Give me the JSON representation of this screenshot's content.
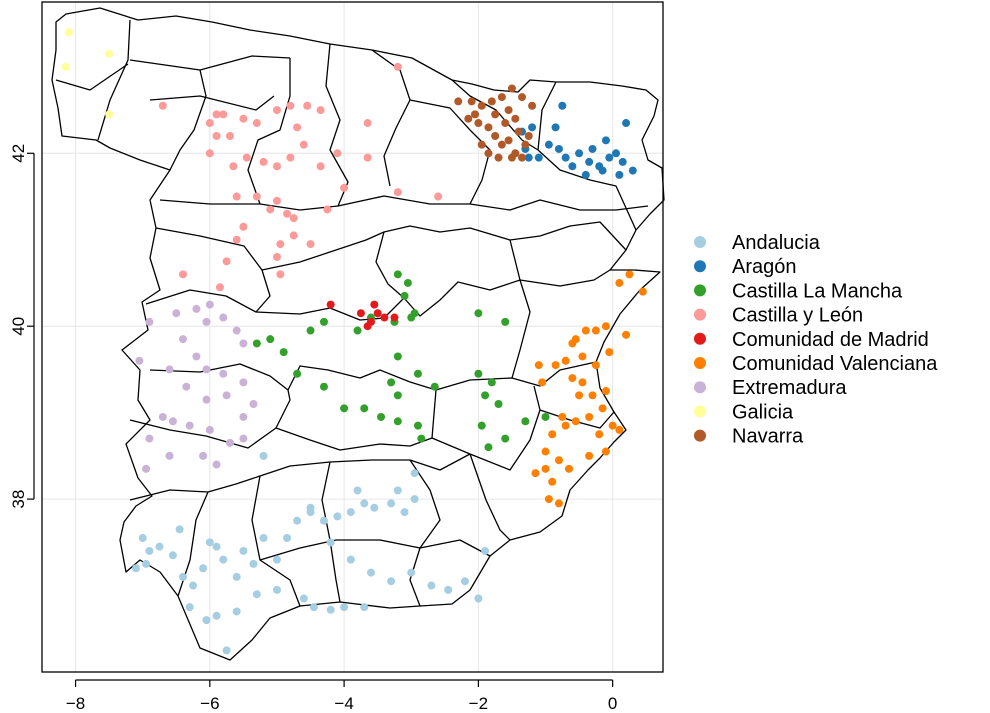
{
  "chart_data": {
    "type": "scatter",
    "title": "",
    "xlabel": "",
    "ylabel": "",
    "xlim": [
      -8.5,
      0.75
    ],
    "ylim": [
      36.0,
      43.75
    ],
    "xticks": [
      -8,
      -6,
      -4,
      -2,
      0
    ],
    "yticks": [
      38,
      40,
      42
    ],
    "xtick_labels": [
      "−8",
      "−6",
      "−4",
      "−2",
      "0"
    ],
    "ytick_labels": [
      "38",
      "40",
      "42"
    ],
    "grid": true,
    "legend_position": "right",
    "basemap": "provinces of Spain (outline)",
    "series": [
      {
        "name": "Andalucia",
        "color": "#a6cee3",
        "points": [
          [
            -7.0,
            37.55
          ],
          [
            -6.9,
            37.4
          ],
          [
            -6.75,
            37.45
          ],
          [
            -7.1,
            37.2
          ],
          [
            -6.55,
            37.35
          ],
          [
            -6.4,
            37.1
          ],
          [
            -6.25,
            37.0
          ],
          [
            -6.1,
            37.2
          ],
          [
            -6.0,
            37.5
          ],
          [
            -5.9,
            37.45
          ],
          [
            -5.8,
            37.3
          ],
          [
            -5.6,
            37.1
          ],
          [
            -5.5,
            37.4
          ],
          [
            -5.35,
            37.25
          ],
          [
            -5.2,
            37.55
          ],
          [
            -5.0,
            37.3
          ],
          [
            -4.85,
            37.55
          ],
          [
            -4.7,
            37.75
          ],
          [
            -4.5,
            37.85
          ],
          [
            -4.3,
            37.75
          ],
          [
            -4.1,
            37.8
          ],
          [
            -3.9,
            37.85
          ],
          [
            -3.7,
            37.95
          ],
          [
            -3.55,
            37.9
          ],
          [
            -3.3,
            37.95
          ],
          [
            -3.1,
            37.85
          ],
          [
            -2.95,
            38.0
          ],
          [
            -3.2,
            38.1
          ],
          [
            -3.8,
            38.1
          ],
          [
            -4.5,
            37.9
          ],
          [
            -4.2,
            37.5
          ],
          [
            -3.9,
            37.3
          ],
          [
            -3.6,
            37.15
          ],
          [
            -3.3,
            37.05
          ],
          [
            -3.0,
            37.15
          ],
          [
            -2.7,
            37.0
          ],
          [
            -2.45,
            36.95
          ],
          [
            -2.2,
            37.05
          ],
          [
            -2.0,
            36.85
          ],
          [
            -1.9,
            37.4
          ],
          [
            -4.6,
            36.85
          ],
          [
            -4.45,
            36.75
          ],
          [
            -4.2,
            36.72
          ],
          [
            -4.0,
            36.75
          ],
          [
            -3.7,
            36.75
          ],
          [
            -5.3,
            36.9
          ],
          [
            -5.6,
            36.7
          ],
          [
            -5.9,
            36.65
          ],
          [
            -6.05,
            36.6
          ],
          [
            -6.3,
            36.75
          ],
          [
            -5.75,
            36.25
          ],
          [
            -5.2,
            38.5
          ],
          [
            -2.95,
            38.3
          ],
          [
            -5.0,
            36.95
          ],
          [
            -6.45,
            37.65
          ],
          [
            -6.95,
            37.25
          ]
        ]
      },
      {
        "name": "Aragón",
        "color": "#1f78b4",
        "points": [
          [
            -1.3,
            42.05
          ],
          [
            -1.25,
            41.95
          ],
          [
            -1.1,
            41.95
          ],
          [
            -0.95,
            42.1
          ],
          [
            -0.8,
            42.05
          ],
          [
            -0.7,
            41.95
          ],
          [
            -0.5,
            42.0
          ],
          [
            -0.35,
            41.9
          ],
          [
            -0.2,
            41.85
          ],
          [
            -0.05,
            41.95
          ],
          [
            0.05,
            42.0
          ],
          [
            0.15,
            41.9
          ],
          [
            0.3,
            41.8
          ],
          [
            0.1,
            41.75
          ],
          [
            -0.15,
            41.8
          ],
          [
            -0.4,
            41.75
          ],
          [
            -0.6,
            41.85
          ],
          [
            -0.85,
            42.3
          ],
          [
            -0.75,
            42.55
          ],
          [
            0.2,
            42.35
          ],
          [
            -0.1,
            42.15
          ],
          [
            -0.3,
            42.05
          ],
          [
            -1.35,
            42.25
          ],
          [
            -1.2,
            42.3
          ]
        ]
      },
      {
        "name": "Castilla La Mancha",
        "color": "#33a02c",
        "points": [
          [
            -3.2,
            40.6
          ],
          [
            -3.05,
            40.5
          ],
          [
            -2.95,
            40.15
          ],
          [
            -3.0,
            40.1
          ],
          [
            -3.25,
            40.05
          ],
          [
            -3.2,
            39.65
          ],
          [
            -3.3,
            39.35
          ],
          [
            -2.9,
            39.45
          ],
          [
            -2.65,
            39.3
          ],
          [
            -2.0,
            40.15
          ],
          [
            -1.6,
            40.05
          ],
          [
            -2.0,
            39.45
          ],
          [
            -1.8,
            39.35
          ],
          [
            -1.9,
            39.2
          ],
          [
            -1.7,
            39.1
          ],
          [
            -1.95,
            38.85
          ],
          [
            -1.85,
            38.6
          ],
          [
            -1.6,
            38.7
          ],
          [
            -1.3,
            38.9
          ],
          [
            -1.0,
            38.95
          ],
          [
            -3.7,
            39.05
          ],
          [
            -3.45,
            38.95
          ],
          [
            -3.2,
            38.9
          ],
          [
            -2.9,
            38.85
          ],
          [
            -4.0,
            39.05
          ],
          [
            -4.3,
            39.3
          ],
          [
            -4.7,
            39.45
          ],
          [
            -4.9,
            39.7
          ],
          [
            -5.1,
            39.85
          ],
          [
            -5.3,
            39.8
          ],
          [
            -4.5,
            39.95
          ],
          [
            -4.3,
            40.05
          ],
          [
            -3.8,
            39.95
          ],
          [
            -2.85,
            38.7
          ],
          [
            -3.2,
            39.2
          ],
          [
            -3.1,
            40.35
          ],
          [
            -3.6,
            40.1
          ]
        ]
      },
      {
        "name": "Castilla y León",
        "color": "#fb9a99",
        "points": [
          [
            -6.7,
            42.55
          ],
          [
            -5.9,
            42.45
          ],
          [
            -5.8,
            42.45
          ],
          [
            -5.7,
            42.2
          ],
          [
            -5.9,
            42.2
          ],
          [
            -6.0,
            42.35
          ],
          [
            -5.5,
            42.4
          ],
          [
            -5.3,
            42.35
          ],
          [
            -5.0,
            42.5
          ],
          [
            -4.8,
            42.55
          ],
          [
            -4.55,
            42.55
          ],
          [
            -4.35,
            42.5
          ],
          [
            -4.7,
            42.3
          ],
          [
            -4.6,
            42.1
          ],
          [
            -4.8,
            41.95
          ],
          [
            -5.0,
            41.85
          ],
          [
            -5.2,
            41.9
          ],
          [
            -5.45,
            41.95
          ],
          [
            -5.65,
            41.85
          ],
          [
            -5.6,
            41.5
          ],
          [
            -5.3,
            41.5
          ],
          [
            -5.0,
            41.45
          ],
          [
            -4.85,
            41.3
          ],
          [
            -4.75,
            41.25
          ],
          [
            -5.1,
            41.35
          ],
          [
            -5.5,
            41.15
          ],
          [
            -5.6,
            41.0
          ],
          [
            -5.75,
            40.75
          ],
          [
            -5.85,
            40.45
          ],
          [
            -4.75,
            41.05
          ],
          [
            -4.95,
            40.95
          ],
          [
            -4.5,
            40.95
          ],
          [
            -4.25,
            41.35
          ],
          [
            -4.35,
            41.85
          ],
          [
            -4.0,
            41.6
          ],
          [
            -4.1,
            42.0
          ],
          [
            -3.65,
            41.95
          ],
          [
            -3.65,
            42.35
          ],
          [
            -3.2,
            41.55
          ],
          [
            -2.6,
            41.5
          ],
          [
            -6.4,
            40.6
          ],
          [
            -4.95,
            40.6
          ],
          [
            -5.0,
            40.8
          ],
          [
            -6.0,
            42.0
          ],
          [
            -3.2,
            43.0
          ]
        ]
      },
      {
        "name": "Comunidad de Madrid",
        "color": "#e31a1c",
        "points": [
          [
            -4.2,
            40.25
          ],
          [
            -3.55,
            40.25
          ],
          [
            -3.5,
            40.15
          ],
          [
            -3.4,
            40.1
          ],
          [
            -3.6,
            40.05
          ],
          [
            -3.25,
            40.1
          ],
          [
            -3.75,
            40.15
          ],
          [
            -3.65,
            40.0
          ]
        ]
      },
      {
        "name": "Comunidad Valenciana",
        "color": "#ff7f00",
        "points": [
          [
            0.45,
            40.4
          ],
          [
            0.25,
            40.6
          ],
          [
            0.1,
            40.5
          ],
          [
            -0.1,
            40.0
          ],
          [
            -0.25,
            39.95
          ],
          [
            -0.4,
            39.95
          ],
          [
            -0.55,
            39.85
          ],
          [
            -0.7,
            39.6
          ],
          [
            -0.85,
            39.55
          ],
          [
            -0.6,
            39.4
          ],
          [
            -0.45,
            39.35
          ],
          [
            -0.5,
            39.2
          ],
          [
            -0.3,
            39.2
          ],
          [
            -0.15,
            39.05
          ],
          [
            -0.1,
            39.25
          ],
          [
            -0.35,
            38.95
          ],
          [
            -0.55,
            38.9
          ],
          [
            -0.7,
            38.85
          ],
          [
            -0.9,
            38.75
          ],
          [
            -1.0,
            38.55
          ],
          [
            -0.8,
            38.45
          ],
          [
            -0.65,
            38.35
          ],
          [
            -0.9,
            38.2
          ],
          [
            -0.95,
            38.0
          ],
          [
            -0.8,
            37.95
          ],
          [
            -1.15,
            38.3
          ],
          [
            -0.2,
            38.75
          ],
          [
            0.0,
            38.85
          ],
          [
            0.1,
            38.8
          ],
          [
            -0.1,
            38.55
          ],
          [
            -0.35,
            38.5
          ],
          [
            -1.05,
            39.35
          ],
          [
            -1.1,
            39.55
          ],
          [
            -0.6,
            39.8
          ],
          [
            -0.05,
            39.7
          ],
          [
            0.2,
            39.9
          ],
          [
            -0.25,
            39.55
          ],
          [
            -0.75,
            38.95
          ],
          [
            -1.0,
            38.35
          ],
          [
            -0.45,
            39.65
          ]
        ]
      },
      {
        "name": "Extremadura",
        "color": "#cab2d6",
        "points": [
          [
            -6.9,
            40.05
          ],
          [
            -6.5,
            40.15
          ],
          [
            -6.2,
            40.2
          ],
          [
            -6.05,
            40.05
          ],
          [
            -6.0,
            40.25
          ],
          [
            -5.8,
            40.1
          ],
          [
            -5.6,
            39.95
          ],
          [
            -5.5,
            39.8
          ],
          [
            -6.4,
            39.85
          ],
          [
            -6.2,
            39.65
          ],
          [
            -6.05,
            39.5
          ],
          [
            -5.8,
            39.45
          ],
          [
            -5.5,
            39.35
          ],
          [
            -7.05,
            39.6
          ],
          [
            -6.6,
            39.5
          ],
          [
            -6.35,
            39.3
          ],
          [
            -6.05,
            39.15
          ],
          [
            -5.75,
            39.2
          ],
          [
            -5.5,
            38.95
          ],
          [
            -6.7,
            38.95
          ],
          [
            -6.55,
            38.9
          ],
          [
            -6.3,
            38.85
          ],
          [
            -6.0,
            38.8
          ],
          [
            -5.7,
            38.65
          ],
          [
            -5.5,
            38.7
          ],
          [
            -6.9,
            38.7
          ],
          [
            -6.6,
            38.5
          ],
          [
            -6.1,
            38.5
          ],
          [
            -5.9,
            38.4
          ],
          [
            -6.95,
            38.35
          ],
          [
            -5.35,
            39.1
          ]
        ]
      },
      {
        "name": "Galicia",
        "color": "#ffff99",
        "points": [
          [
            -8.1,
            43.4
          ],
          [
            -8.15,
            43.0
          ],
          [
            -7.5,
            43.15
          ],
          [
            -7.5,
            42.45
          ]
        ]
      },
      {
        "name": "Navarra",
        "color": "#b15928",
        "points": [
          [
            -2.3,
            42.6
          ],
          [
            -2.1,
            42.6
          ],
          [
            -1.95,
            42.55
          ],
          [
            -1.8,
            42.6
          ],
          [
            -1.65,
            42.65
          ],
          [
            -1.55,
            42.5
          ],
          [
            -1.45,
            42.4
          ],
          [
            -1.35,
            42.65
          ],
          [
            -1.2,
            42.55
          ],
          [
            -2.15,
            42.4
          ],
          [
            -2.0,
            42.35
          ],
          [
            -1.85,
            42.3
          ],
          [
            -1.75,
            42.2
          ],
          [
            -1.65,
            42.1
          ],
          [
            -1.55,
            42.15
          ],
          [
            -1.4,
            42.25
          ],
          [
            -1.3,
            42.1
          ],
          [
            -1.85,
            42.0
          ],
          [
            -1.7,
            41.95
          ],
          [
            -1.5,
            41.95
          ],
          [
            -1.35,
            41.95
          ],
          [
            -1.6,
            42.35
          ],
          [
            -1.75,
            42.45
          ],
          [
            -1.5,
            42.75
          ],
          [
            -1.25,
            42.2
          ],
          [
            -1.95,
            42.1
          ],
          [
            -1.45,
            42.0
          ],
          [
            -2.05,
            42.45
          ]
        ]
      }
    ]
  }
}
